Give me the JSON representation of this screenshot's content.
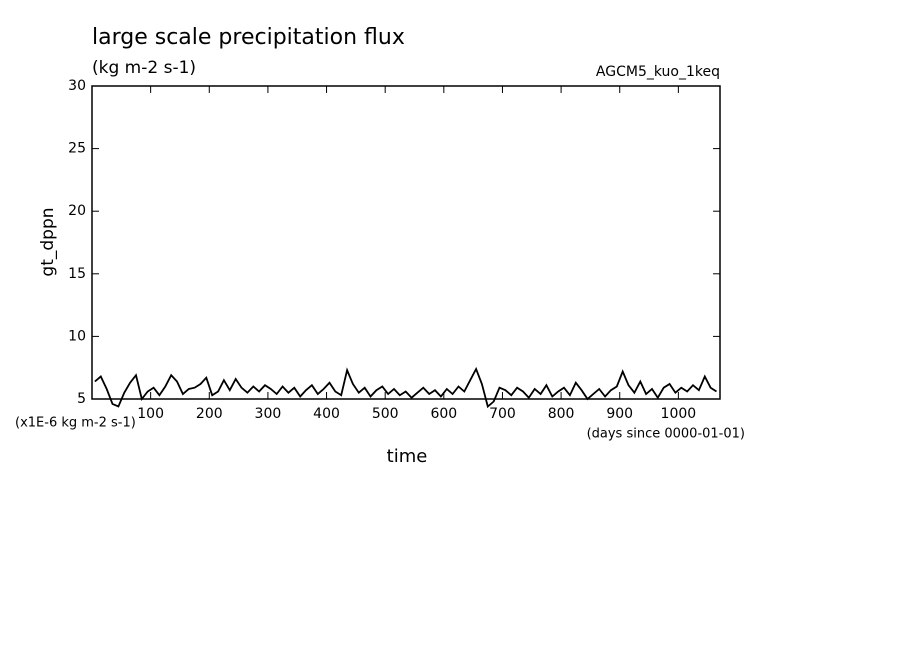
{
  "chart_data": {
    "type": "line",
    "title": "large scale precipitation flux",
    "subtitle": "(kg m-2 s-1)",
    "annotation": "AGCM5_kuo_1keq",
    "ylabel": "gt_dppn",
    "xlabel": "time",
    "yunit": "(x1E-6 kg m-2 s-1)",
    "xunit": "(days since 0000-01-01)",
    "color": "#000000",
    "xlim": [
      0,
      1071
    ],
    "ylim": [
      5,
      30
    ],
    "xticks": [
      100,
      200,
      300,
      400,
      500,
      600,
      700,
      800,
      900,
      1000
    ],
    "yticks": [
      5,
      10,
      15,
      20,
      25,
      30
    ],
    "x": [
      5,
      15,
      25,
      35,
      45,
      55,
      65,
      75,
      85,
      95,
      105,
      115,
      125,
      135,
      145,
      155,
      165,
      175,
      185,
      195,
      205,
      215,
      225,
      235,
      245,
      255,
      265,
      275,
      285,
      295,
      305,
      315,
      325,
      335,
      345,
      355,
      365,
      375,
      385,
      395,
      405,
      415,
      425,
      435,
      445,
      455,
      465,
      475,
      485,
      495,
      505,
      515,
      525,
      535,
      545,
      555,
      565,
      575,
      585,
      595,
      605,
      615,
      625,
      635,
      645,
      655,
      665,
      675,
      685,
      695,
      705,
      715,
      725,
      735,
      745,
      755,
      765,
      775,
      785,
      795,
      805,
      815,
      825,
      835,
      845,
      855,
      865,
      875,
      885,
      895,
      905,
      915,
      925,
      935,
      945,
      955,
      965,
      975,
      985,
      995,
      1005,
      1015,
      1025,
      1035,
      1045,
      1055,
      1065
    ],
    "values": [
      6.4,
      6.8,
      5.8,
      4.6,
      4.4,
      5.5,
      6.3,
      6.9,
      5.0,
      5.6,
      5.9,
      5.3,
      6.0,
      6.9,
      6.4,
      5.4,
      5.8,
      5.9,
      6.2,
      6.7,
      5.3,
      5.6,
      6.5,
      5.7,
      6.6,
      5.9,
      5.5,
      6.0,
      5.6,
      6.1,
      5.8,
      5.4,
      6.0,
      5.5,
      5.9,
      5.2,
      5.7,
      6.1,
      5.4,
      5.8,
      6.3,
      5.6,
      5.3,
      7.3,
      6.2,
      5.5,
      5.9,
      5.2,
      5.7,
      6.0,
      5.4,
      5.8,
      5.3,
      5.6,
      5.1,
      5.5,
      5.9,
      5.4,
      5.7,
      5.2,
      5.8,
      5.4,
      6.0,
      5.6,
      6.5,
      7.4,
      6.2,
      4.4,
      4.8,
      5.9,
      5.7,
      5.3,
      5.9,
      5.6,
      5.1,
      5.8,
      5.4,
      6.1,
      5.2,
      5.6,
      5.9,
      5.3,
      6.3,
      5.7,
      5.0,
      5.4,
      5.8,
      5.2,
      5.7,
      6.0,
      7.2,
      6.1,
      5.5,
      6.4,
      5.4,
      5.8,
      5.1,
      5.9,
      6.2,
      5.5,
      5.9,
      5.6,
      6.1,
      5.7,
      6.8,
      5.9,
      5.6
    ]
  }
}
